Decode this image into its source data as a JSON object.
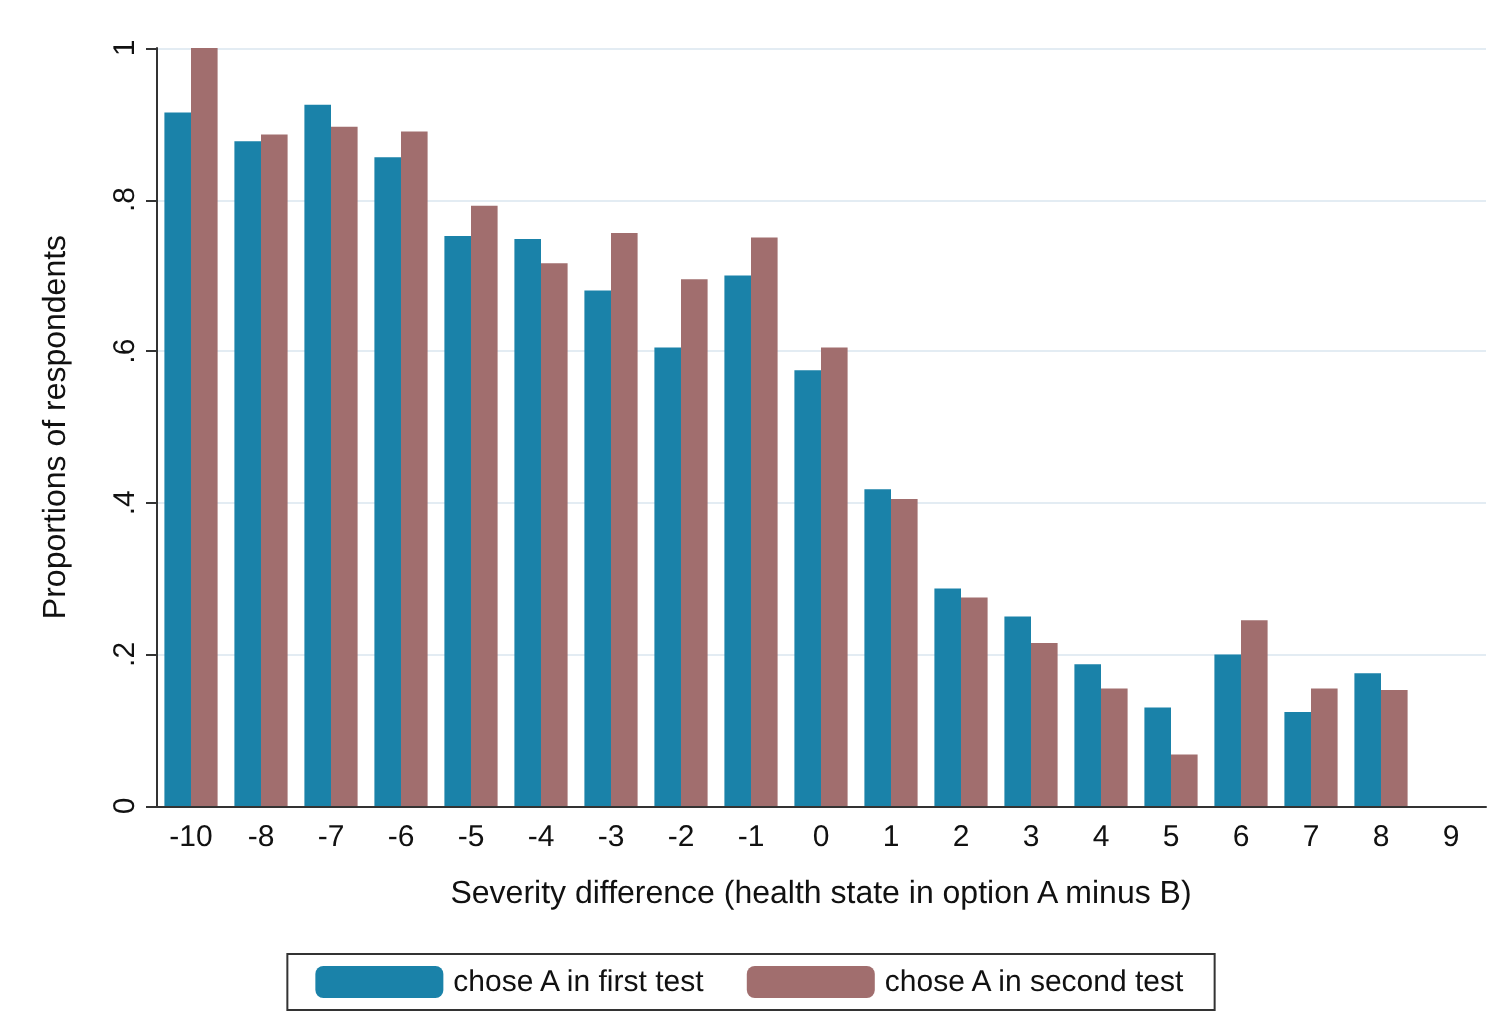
{
  "chart_data": {
    "type": "bar",
    "xlabel": "Severity difference (health state in option A minus B)",
    "ylabel": "Proportions of respondents",
    "categories": [
      "-10",
      "-8",
      "-7",
      "-6",
      "-5",
      "-4",
      "-3",
      "-2",
      "-1",
      "0",
      "1",
      "2",
      "3",
      "4",
      "5",
      "6",
      "7",
      "8",
      "9"
    ],
    "series": [
      {
        "name": "chose A in first test",
        "color": "#1a82a9",
        "values": [
          0.915,
          0.877,
          0.925,
          0.856,
          0.752,
          0.748,
          0.68,
          0.605,
          0.7,
          0.575,
          0.418,
          0.287,
          0.25,
          0.187,
          0.13,
          0.2,
          0.124,
          0.175,
          null
        ]
      },
      {
        "name": "chose A in second test",
        "color": "#a16e6e",
        "values": [
          1.0,
          0.886,
          0.896,
          0.89,
          0.792,
          0.716,
          0.756,
          0.695,
          0.75,
          0.605,
          0.405,
          0.275,
          0.215,
          0.155,
          0.068,
          0.245,
          0.155,
          0.153,
          null
        ]
      }
    ],
    "ylim": [
      0,
      1
    ],
    "yticks": [
      0,
      {
        "value": 0.2,
        "label": ".2"
      },
      {
        "value": 0.4,
        "label": ".4"
      },
      {
        "value": 0.6,
        "label": ".6"
      },
      {
        "value": 0.8,
        "label": ".8"
      },
      1
    ],
    "grid": "y",
    "legend": "bottom"
  }
}
